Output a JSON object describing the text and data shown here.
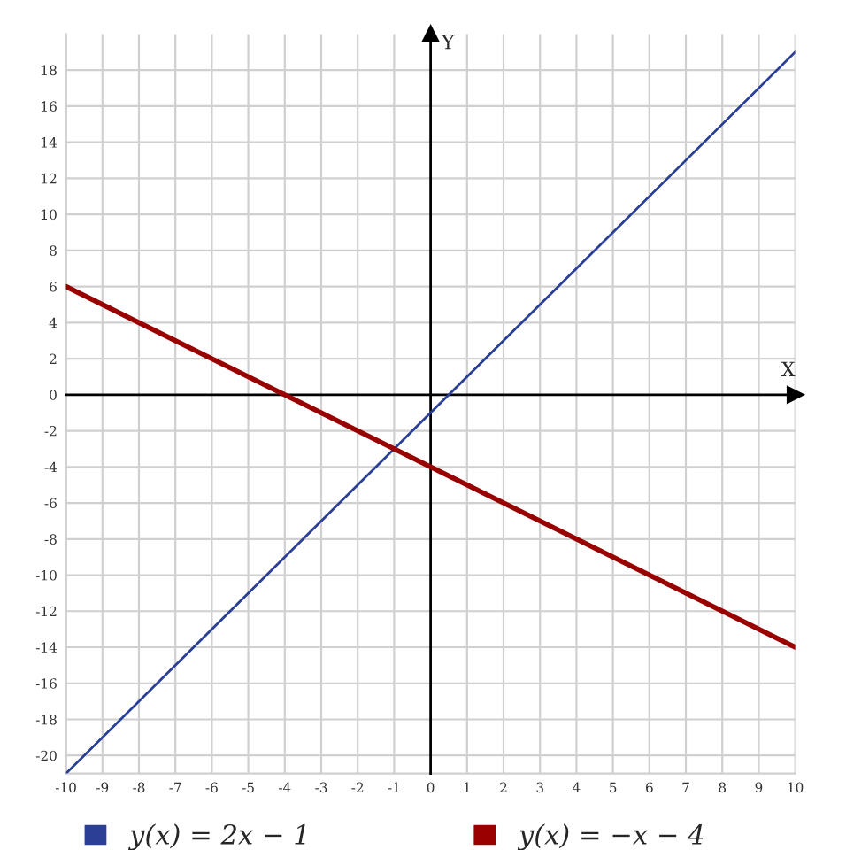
{
  "chart_data": {
    "type": "line",
    "xlabel": "X",
    "ylabel": "Y",
    "series": [
      {
        "name": "y(x) = 2x − 1",
        "color": "#2b3f95",
        "values": [
          -21,
          19
        ]
      },
      {
        "name": "y(x) = −x − 4",
        "color": "#990000",
        "values": [
          6,
          -14
        ]
      }
    ],
    "x": [
      -10,
      10
    ],
    "xlim": [
      -10,
      10
    ],
    "ylim": [
      -21,
      20
    ],
    "xticks": [
      -10,
      -9,
      -8,
      -7,
      -6,
      -5,
      -4,
      -3,
      -2,
      -1,
      0,
      1,
      2,
      3,
      4,
      5,
      6,
      7,
      8,
      9,
      10
    ],
    "yticks": [
      -20,
      -18,
      -16,
      -14,
      -12,
      -10,
      -8,
      -6,
      -4,
      -2,
      0,
      2,
      4,
      6,
      8,
      10,
      12,
      14,
      16,
      18
    ],
    "grid": true,
    "legend": "bottom",
    "marker": "none",
    "line_style": "solid"
  }
}
